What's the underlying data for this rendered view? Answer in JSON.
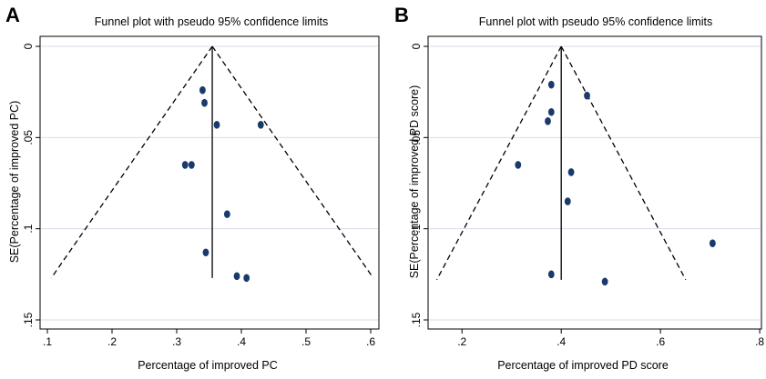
{
  "colors": {
    "background": "#ffffff",
    "grid": "#d6dde8",
    "marker": "#1a3a6b",
    "axis": "#000000"
  },
  "chart_data": [
    {
      "type": "scatter",
      "panel_label": "A",
      "title": "Funnel plot with pseudo 95% confidence limits",
      "xlabel": "Percentage of improved PC",
      "ylabel": "SE(Percentage of improved PC)",
      "xlim": [
        0.1,
        0.6
      ],
      "ylim": [
        0,
        0.15
      ],
      "y_reversed": true,
      "grid": true,
      "x_ticks": [
        0.1,
        0.2,
        0.3,
        0.4,
        0.5,
        0.6
      ],
      "x_tick_labels": [
        ".1",
        ".2",
        ".3",
        ".4",
        ".5",
        ".6"
      ],
      "y_ticks": [
        0,
        0.05,
        0.1,
        0.15
      ],
      "y_tick_labels": [
        "0",
        ".05",
        ".1",
        ".15"
      ],
      "pooled_estimate": 0.355,
      "funnel_se_max": 0.127,
      "points": [
        {
          "x": 0.34,
          "y": 0.024
        },
        {
          "x": 0.343,
          "y": 0.031
        },
        {
          "x": 0.362,
          "y": 0.043
        },
        {
          "x": 0.43,
          "y": 0.043
        },
        {
          "x": 0.313,
          "y": 0.065
        },
        {
          "x": 0.323,
          "y": 0.065
        },
        {
          "x": 0.378,
          "y": 0.092
        },
        {
          "x": 0.345,
          "y": 0.113
        },
        {
          "x": 0.393,
          "y": 0.126
        },
        {
          "x": 0.408,
          "y": 0.127
        }
      ]
    },
    {
      "type": "scatter",
      "panel_label": "B",
      "title": "Funnel plot with pseudo 95% confidence limits",
      "xlabel": "Percentage of improved PD score",
      "ylabel": "SE(Percentage of improved PD score)",
      "xlim": [
        0.15,
        0.82
      ],
      "ylim": [
        0,
        0.15
      ],
      "y_reversed": true,
      "grid": true,
      "x_ticks": [
        0.2,
        0.4,
        0.6,
        0.8
      ],
      "x_tick_labels": [
        ".2",
        ".4",
        ".6",
        ".8"
      ],
      "y_ticks": [
        0,
        0.05,
        0.1,
        0.15
      ],
      "y_tick_labels": [
        "0",
        ".05",
        ".1",
        ".15"
      ],
      "pooled_estimate": 0.4,
      "funnel_se_max": 0.128,
      "points": [
        {
          "x": 0.38,
          "y": 0.021
        },
        {
          "x": 0.452,
          "y": 0.027
        },
        {
          "x": 0.38,
          "y": 0.036
        },
        {
          "x": 0.373,
          "y": 0.041
        },
        {
          "x": 0.313,
          "y": 0.065
        },
        {
          "x": 0.42,
          "y": 0.069
        },
        {
          "x": 0.413,
          "y": 0.085
        },
        {
          "x": 0.705,
          "y": 0.108
        },
        {
          "x": 0.38,
          "y": 0.125
        },
        {
          "x": 0.488,
          "y": 0.129
        }
      ]
    }
  ]
}
